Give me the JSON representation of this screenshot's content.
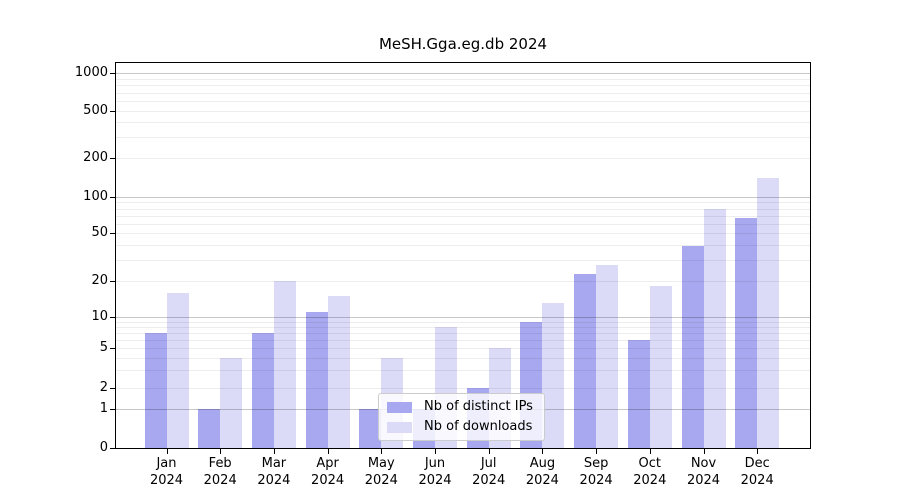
{
  "title": "MeSH.Gga.eg.db 2024",
  "chart_data": {
    "type": "bar",
    "title": "MeSH.Gga.eg.db 2024",
    "categories": [
      "Jan",
      "Feb",
      "Mar",
      "Apr",
      "May",
      "Jun",
      "Jul",
      "Aug",
      "Sep",
      "Oct",
      "Nov",
      "Dec"
    ],
    "year_label": "2024",
    "series": [
      {
        "name": "Nb of distinct IPs",
        "color": "#a8a8f0",
        "values": [
          7,
          1,
          7,
          11,
          1,
          1,
          2,
          9,
          23,
          6,
          39,
          67
        ]
      },
      {
        "name": "Nb of downloads",
        "color": "#dbdbf8",
        "values": [
          16,
          4,
          20,
          15,
          4,
          8,
          5,
          13,
          27,
          18,
          80,
          140
        ]
      }
    ],
    "y_ticks": [
      0,
      1,
      2,
      5,
      10,
      20,
      50,
      100,
      200,
      500,
      1000
    ],
    "y_minor_gridlines": [
      3,
      4,
      6,
      7,
      8,
      9,
      30,
      40,
      60,
      70,
      80,
      90,
      300,
      400,
      600,
      700,
      800,
      900
    ],
    "y_major_gridlines": [
      1,
      10,
      100,
      1000
    ],
    "scale": "symlog",
    "ylim": [
      0,
      1000
    ],
    "grid": true,
    "legend_position": "lower center",
    "axis_color": "#000000",
    "background_color": "#ffffff"
  }
}
